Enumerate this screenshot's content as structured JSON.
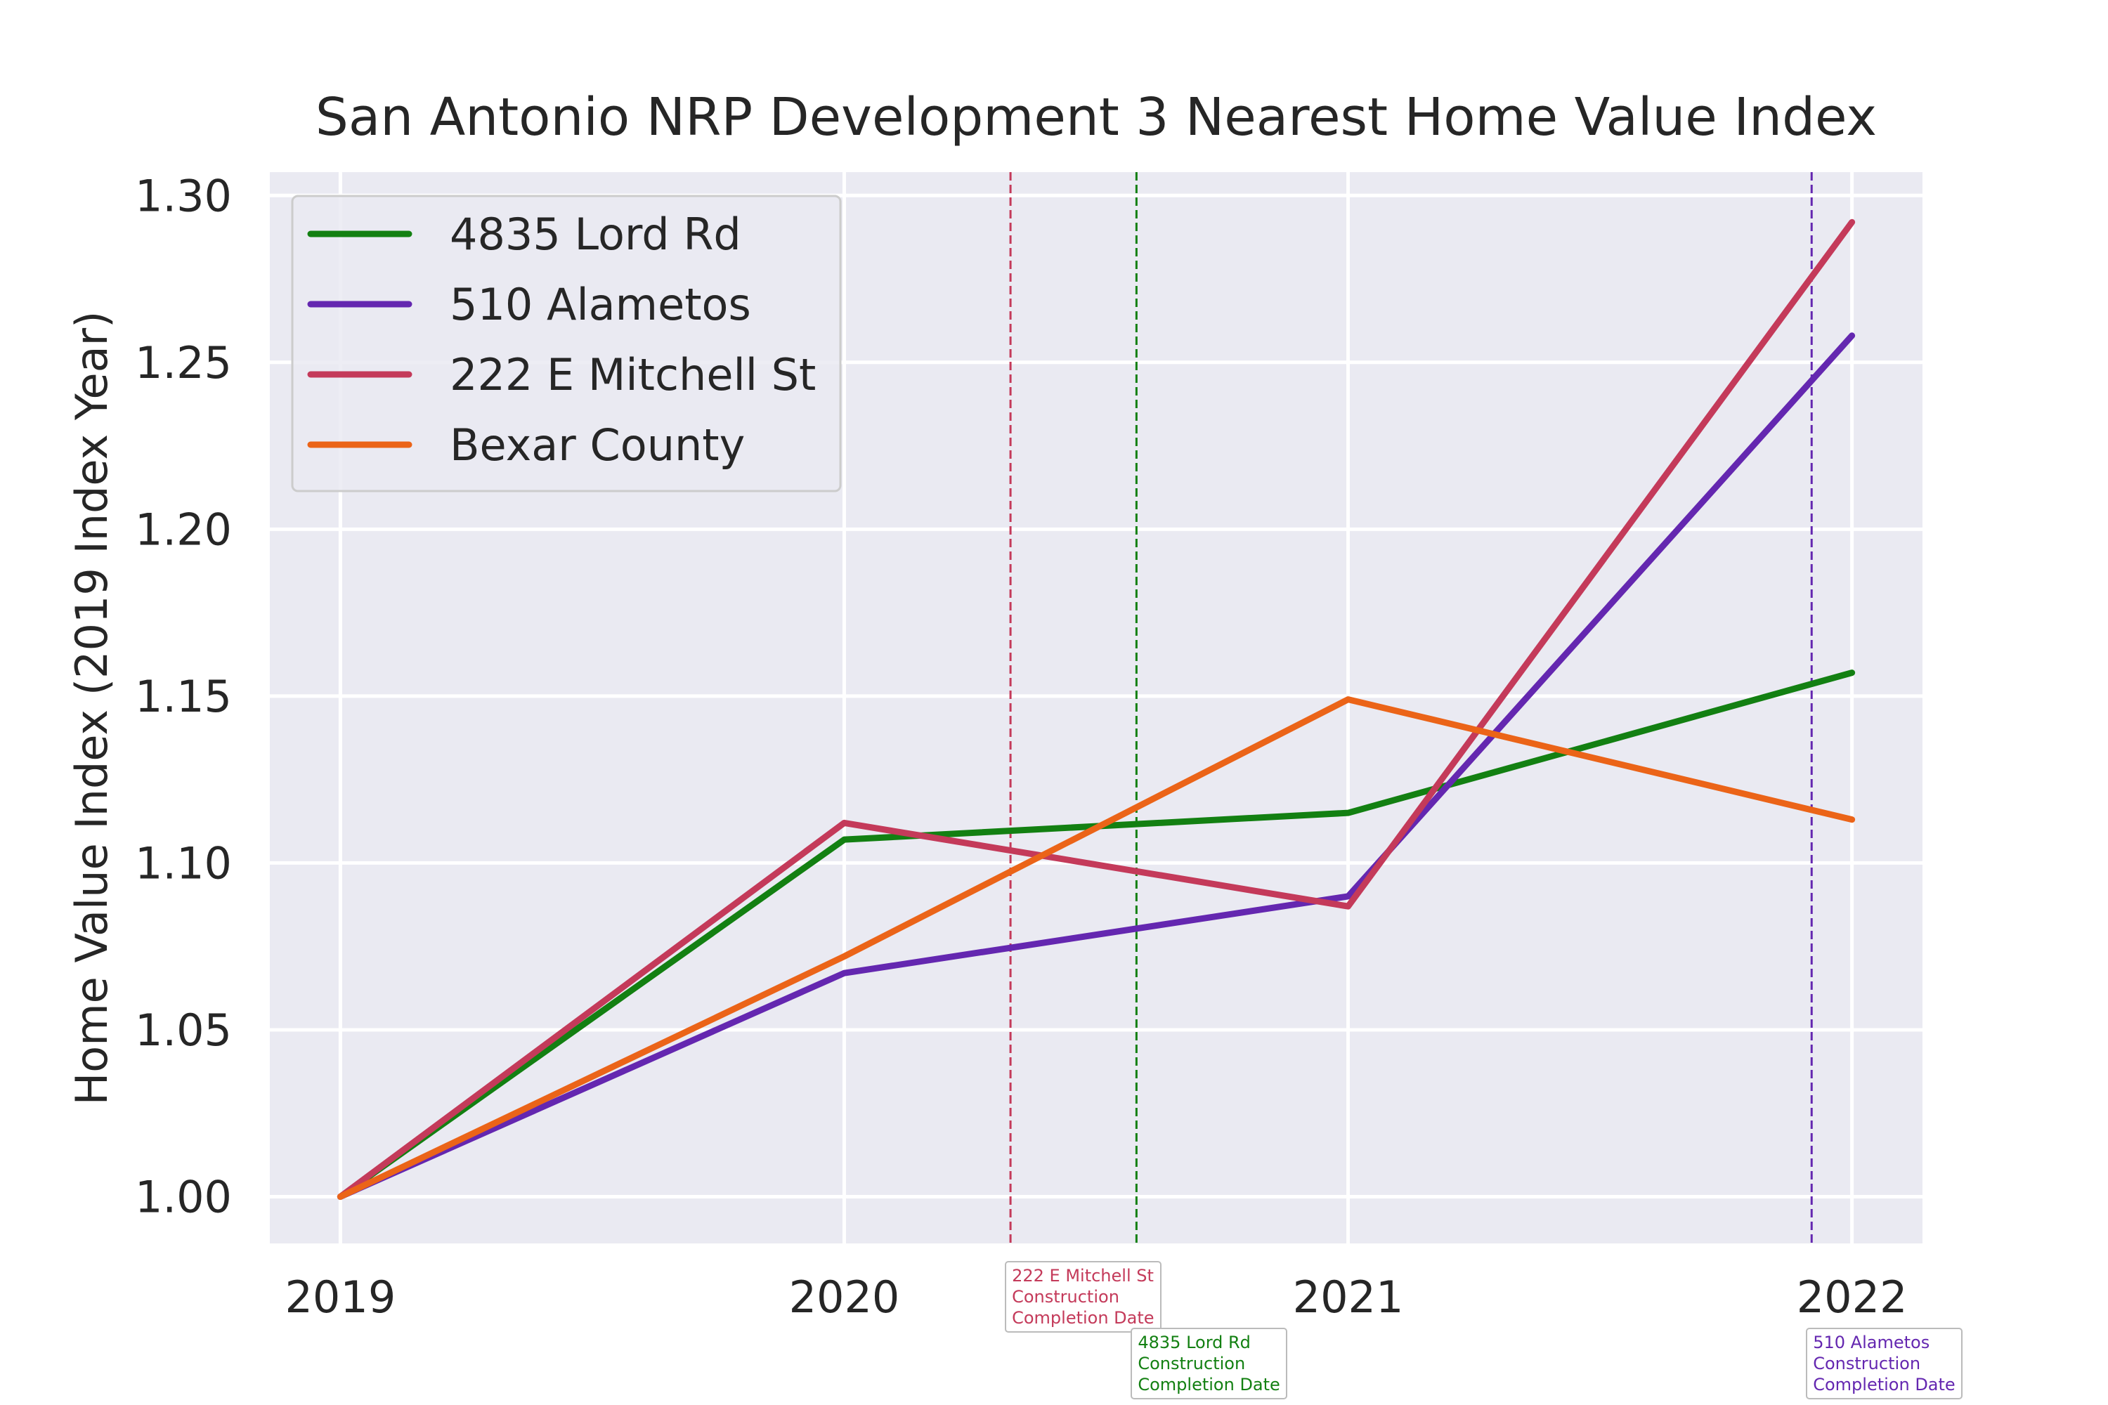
{
  "chart_data": {
    "type": "line",
    "title": "San Antonio NRP Development 3 Nearest Home Value Index",
    "xlabel": "",
    "ylabel": "Home Value Index (2019 Index Year)",
    "x": [
      2019,
      2020,
      2021,
      2022
    ],
    "xlim": [
      2018.86,
      2022.14
    ],
    "ylim": [
      0.986,
      1.307
    ],
    "yticks": [
      "1.00",
      "1.05",
      "1.10",
      "1.15",
      "1.20",
      "1.25",
      "1.30"
    ],
    "xticks": [
      "2019",
      "2020",
      "2021",
      "2022"
    ],
    "grid": true,
    "legend_position": "top-left",
    "background": "#eaeaf2",
    "series": [
      {
        "name": "4835 Lord Rd",
        "color": "#138012",
        "values": [
          1.0,
          1.107,
          1.115,
          1.157
        ]
      },
      {
        "name": "510 Alametos",
        "color": "#6427b0",
        "values": [
          1.0,
          1.067,
          1.09,
          1.258
        ]
      },
      {
        "name": "222 E Mitchell St",
        "color": "#c43a5a",
        "values": [
          1.0,
          1.112,
          1.087,
          1.292
        ]
      },
      {
        "name": "Bexar County",
        "color": "#eb6418",
        "values": [
          1.0,
          1.072,
          1.149,
          1.113
        ]
      }
    ],
    "annotations": [
      {
        "x": 2020.33,
        "color": "#c43a5a",
        "lines": [
          "222 E Mitchell St",
          "Construction",
          "Completion Date"
        ]
      },
      {
        "x": 2020.58,
        "color": "#138012",
        "lines": [
          "4835 Lord Rd",
          "Construction",
          "Completion Date"
        ]
      },
      {
        "x": 2021.92,
        "color": "#6427b0",
        "lines": [
          "510 Alametos",
          "Construction",
          "Completion Date"
        ]
      }
    ]
  }
}
